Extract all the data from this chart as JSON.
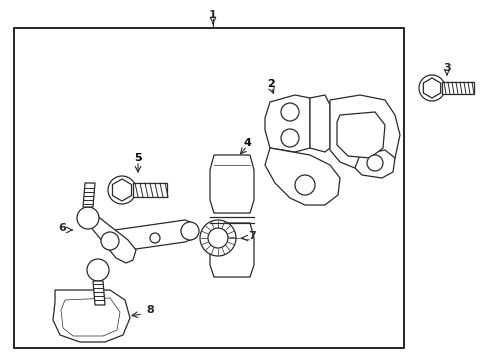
{
  "bg_color": "#ffffff",
  "border_color": "#000000",
  "line_color": "#2a2a2a",
  "label_color": "#000000",
  "fig_width": 4.89,
  "fig_height": 3.6,
  "dpi": 100
}
